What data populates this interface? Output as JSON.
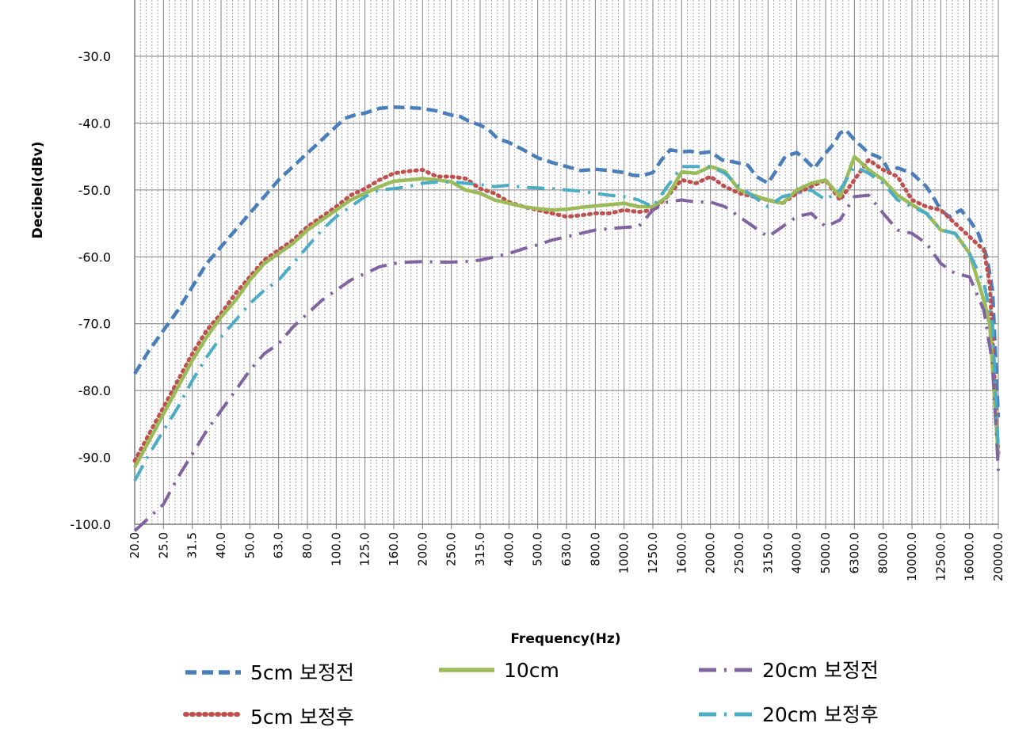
{
  "chart_data": {
    "type": "line",
    "xlabel": "Frequency(Hz)",
    "ylabel": "Decibel(dBv)",
    "ylim": [
      -100,
      -30
    ],
    "y_ticks": [
      "-30.0",
      "-40.0",
      "-50.0",
      "-60.0",
      "-70.0",
      "-80.0",
      "-90.0",
      "-100.0"
    ],
    "x_labels": [
      "20.0",
      "25.0",
      "31.5",
      "40.0",
      "50.0",
      "63.0",
      "80.0",
      "100.0",
      "125.0",
      "160.0",
      "200.0",
      "250.0",
      "315.0",
      "400.0",
      "500.0",
      "630.0",
      "800.0",
      "1000.0",
      "1250.0",
      "1600.0",
      "2000.0",
      "2500.0",
      "3150.0",
      "4000.0",
      "5000.0",
      "6300.0",
      "8000.0",
      "10000.0",
      "12500.0",
      "16000.0",
      "20000.0"
    ],
    "x_positions": [
      0,
      1,
      2,
      3,
      4,
      5,
      6,
      7,
      8,
      9,
      10,
      11,
      12,
      13,
      14,
      15,
      16,
      17,
      18,
      19,
      20,
      21,
      22,
      23,
      24,
      25,
      26,
      27,
      28,
      29,
      30
    ],
    "grid": "on",
    "legend_position": "bottom",
    "series": [
      {
        "name": "5cm 보정전",
        "color": "#4a7ebb",
        "dash": "14,7",
        "width": 4.5,
        "x": [
          0,
          0.5,
          1,
          1.5,
          2,
          2.5,
          3,
          3.5,
          4,
          4.5,
          5,
          5.5,
          6,
          6.5,
          7,
          7.3,
          7.7,
          8,
          8.5,
          9,
          9.5,
          10,
          10.5,
          11,
          11.3,
          11.6,
          12,
          12.3,
          12.6,
          13,
          13.5,
          14,
          14.5,
          15,
          15.5,
          16,
          16.5,
          17,
          17.3,
          17.6,
          18,
          18.3,
          18.6,
          19,
          19.3,
          19.6,
          20,
          20.4,
          20.8,
          21,
          21.3,
          21.6,
          22,
          22.3,
          22.6,
          23,
          23.3,
          23.6,
          24,
          24.3,
          24.5,
          24.7,
          25,
          25.5,
          25.8,
          26,
          26.2,
          26.5,
          27,
          27.5,
          27.8,
          28,
          28.3,
          28.5,
          28.7,
          29,
          29.3,
          29.6,
          29.8,
          30
        ],
        "y": [
          -77.5,
          -74,
          -71,
          -68,
          -64.5,
          -61,
          -58.5,
          -56,
          -53.5,
          -51,
          -48.5,
          -46.5,
          -44.5,
          -42.5,
          -40.5,
          -39.3,
          -38.7,
          -38.5,
          -37.8,
          -37.6,
          -37.7,
          -37.8,
          -38.2,
          -38.8,
          -39.0,
          -39.7,
          -40.3,
          -41.0,
          -42.3,
          -42.9,
          -44.0,
          -45.2,
          -45.9,
          -46.5,
          -47.1,
          -46.9,
          -47.1,
          -47.4,
          -47.8,
          -47.9,
          -47.4,
          -45.5,
          -44.0,
          -44.3,
          -44.2,
          -44.5,
          -44.3,
          -45.5,
          -45.8,
          -46.0,
          -46.3,
          -48.0,
          -49.0,
          -47.0,
          -45.0,
          -44.4,
          -45.5,
          -46.8,
          -44.5,
          -43.0,
          -41.5,
          -41.0,
          -42.5,
          -44.5,
          -45.0,
          -45.5,
          -47.2,
          -46.7,
          -47.5,
          -49.5,
          -51.5,
          -53.0,
          -54.0,
          -53.5,
          -53.0,
          -54.5,
          -56.5,
          -60.0,
          -65.0,
          -84.0
        ]
      },
      {
        "name": "5cm 보정후",
        "color": "#c0504d",
        "dash": "2,6",
        "width": 5,
        "x": [
          0,
          0.5,
          1,
          1.5,
          2,
          2.5,
          3,
          3.5,
          4,
          4.5,
          5,
          5.5,
          6,
          6.5,
          7,
          7.5,
          8,
          8.5,
          9,
          9.5,
          10,
          10.5,
          11,
          11.5,
          12,
          12.5,
          13,
          13.5,
          14,
          14.5,
          15,
          15.5,
          16,
          16.5,
          17,
          17.5,
          18,
          18.5,
          19,
          19.5,
          20,
          20.5,
          21,
          21.5,
          22,
          22.5,
          23,
          23.5,
          24,
          24.5,
          25,
          25.5,
          26,
          26.5,
          27,
          27.5,
          28,
          28.5,
          29,
          29.5,
          29.7,
          30
        ],
        "y": [
          -90.5,
          -86.5,
          -82.5,
          -78.5,
          -74.5,
          -71,
          -68.5,
          -65.5,
          -63,
          -60.5,
          -59,
          -57.5,
          -55.5,
          -54,
          -52.5,
          -50.8,
          -49.8,
          -48.5,
          -47.5,
          -47.2,
          -47.0,
          -48.0,
          -48.0,
          -48.3,
          -49.8,
          -50.5,
          -51.8,
          -52.5,
          -53.0,
          -53.5,
          -54.0,
          -53.8,
          -53.5,
          -53.5,
          -53.0,
          -53.3,
          -53.0,
          -51.0,
          -48.5,
          -49.0,
          -48.0,
          -49.5,
          -50.5,
          -51.0,
          -51.5,
          -52.0,
          -50.5,
          -49.5,
          -48.5,
          -51.5,
          -48.5,
          -45.5,
          -47.0,
          -48.0,
          -51.5,
          -52.5,
          -53.0,
          -55.0,
          -57.0,
          -59.0,
          -64.0,
          -89.5
        ]
      },
      {
        "name": "10cm",
        "color": "#9bbb59",
        "dash": "",
        "width": 4.5,
        "x": [
          0,
          0.5,
          1,
          1.5,
          2,
          2.5,
          3,
          3.5,
          4,
          4.5,
          5,
          5.5,
          6,
          6.5,
          7,
          7.5,
          8,
          8.5,
          9,
          9.5,
          10,
          10.5,
          11,
          11.5,
          12,
          12.5,
          13,
          13.5,
          14,
          14.5,
          15,
          15.5,
          16,
          16.5,
          17,
          17.5,
          18,
          18.5,
          19,
          19.5,
          20,
          20.5,
          21,
          21.5,
          22,
          22.5,
          23,
          23.5,
          24,
          24.5,
          25,
          25.5,
          26,
          26.5,
          27,
          27.5,
          28,
          28.5,
          29,
          29.5,
          29.7,
          30
        ],
        "y": [
          -91.5,
          -87.5,
          -83.5,
          -79.5,
          -75.5,
          -72,
          -69,
          -66.5,
          -63.5,
          -61,
          -59.5,
          -58,
          -56,
          -54.5,
          -53,
          -51.5,
          -50.5,
          -49.5,
          -48.7,
          -48.5,
          -48.3,
          -48.5,
          -48.8,
          -50.0,
          -50.5,
          -51.5,
          -52.0,
          -52.5,
          -52.8,
          -53.0,
          -52.9,
          -52.6,
          -52.4,
          -52.2,
          -52.0,
          -52.5,
          -52.5,
          -51.0,
          -47.3,
          -47.5,
          -46.5,
          -47.2,
          -50.0,
          -50.8,
          -51.5,
          -52.0,
          -50.0,
          -49.0,
          -48.5,
          -51.0,
          -45.0,
          -47.0,
          -48.5,
          -50.8,
          -52.2,
          -53.5,
          -56.0,
          -56.5,
          -59.5,
          -66.5,
          -70.0,
          -90.0
        ]
      },
      {
        "name": "20cm 보정전",
        "color": "#8064a2",
        "dash": "22,10,3,10",
        "width": 4,
        "x": [
          0,
          0.5,
          1,
          1.5,
          2,
          2.5,
          3,
          3.5,
          4,
          4.5,
          5,
          5.5,
          6,
          6.5,
          7,
          7.5,
          8,
          8.5,
          9,
          9.5,
          10,
          10.5,
          11,
          11.5,
          12,
          12.5,
          13,
          13.5,
          14,
          14.5,
          15,
          15.5,
          16,
          16.5,
          17,
          17.5,
          18,
          18.5,
          19,
          19.5,
          20,
          20.5,
          21,
          21.5,
          22,
          22.5,
          23,
          23.5,
          24,
          24.5,
          25,
          25.5,
          26,
          26.5,
          27,
          27.5,
          28,
          28.5,
          29,
          29.5,
          29.8,
          30
        ],
        "y": [
          -101,
          -99,
          -97,
          -93,
          -89.5,
          -86,
          -83,
          -80,
          -77,
          -74.5,
          -73,
          -70.5,
          -68.5,
          -66.5,
          -65,
          -63.5,
          -62.5,
          -61.5,
          -61,
          -60.8,
          -60.7,
          -60.8,
          -60.8,
          -60.7,
          -60.5,
          -60.0,
          -59.5,
          -58.8,
          -58.2,
          -57.5,
          -57.0,
          -56.5,
          -56.0,
          -55.8,
          -55.6,
          -55.5,
          -53.0,
          -51.8,
          -51.5,
          -51.8,
          -51.8,
          -52.5,
          -54.0,
          -55.5,
          -57.0,
          -55.5,
          -54.0,
          -53.5,
          -55.5,
          -54.5,
          -51.0,
          -50.8,
          -53.5,
          -56.0,
          -56.5,
          -58.0,
          -61.0,
          -62.5,
          -63.0,
          -68.0,
          -76.0,
          -92.0
        ]
      },
      {
        "name": "20cm 보정후",
        "color": "#4bacc6",
        "dash": "22,10,3,10",
        "width": 4,
        "x": [
          0,
          0.5,
          1,
          1.5,
          2,
          2.5,
          3,
          3.5,
          4,
          4.5,
          5,
          5.5,
          6,
          6.5,
          7,
          7.5,
          8,
          8.5,
          9,
          9.5,
          10,
          10.5,
          11,
          11.5,
          12,
          12.5,
          13,
          13.5,
          14,
          14.5,
          15,
          15.5,
          16,
          16.5,
          17,
          17.5,
          18,
          18.5,
          19,
          19.5,
          20,
          20.5,
          21,
          21.5,
          22,
          22.5,
          23,
          23.5,
          24,
          24.5,
          25,
          25.5,
          26,
          26.5,
          27,
          27.5,
          28,
          28.5,
          29,
          29.5,
          29.8,
          30
        ],
        "y": [
          -93.5,
          -89.5,
          -86,
          -82.5,
          -78.5,
          -75,
          -72,
          -69.5,
          -67,
          -65,
          -63.5,
          -61,
          -58.5,
          -56,
          -54,
          -52.5,
          -51,
          -50,
          -49.8,
          -49.5,
          -49.0,
          -48.8,
          -48.8,
          -49.0,
          -49.2,
          -49.5,
          -49.3,
          -49.6,
          -49.7,
          -49.8,
          -50.0,
          -50.2,
          -50.5,
          -50.8,
          -51.0,
          -51.5,
          -52.5,
          -49.5,
          -46.5,
          -46.5,
          -46.5,
          -47.5,
          -49.5,
          -51.0,
          -52.5,
          -51.0,
          -50.5,
          -50.0,
          -51.5,
          -50.0,
          -46.5,
          -47.5,
          -49.0,
          -51.5,
          -52.5,
          -53.5,
          -56.0,
          -56.5,
          -59.5,
          -64.0,
          -70.0,
          -89.0
        ]
      }
    ]
  }
}
